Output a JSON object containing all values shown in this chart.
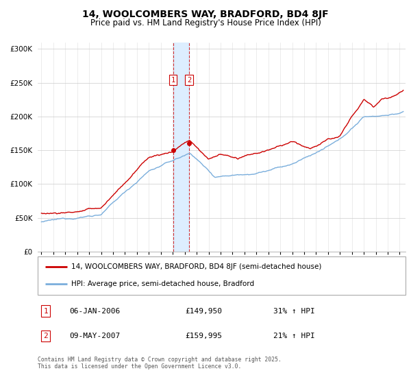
{
  "title": "14, WOOLCOMBERS WAY, BRADFORD, BD4 8JF",
  "subtitle": "Price paid vs. HM Land Registry's House Price Index (HPI)",
  "legend_line1": "14, WOOLCOMBERS WAY, BRADFORD, BD4 8JF (semi-detached house)",
  "legend_line2": "HPI: Average price, semi-detached house, Bradford",
  "transaction1_date": "06-JAN-2006",
  "transaction1_price": "£149,950",
  "transaction1_hpi": "31% ↑ HPI",
  "transaction2_date": "09-MAY-2007",
  "transaction2_price": "£159,995",
  "transaction2_hpi": "21% ↑ HPI",
  "footnote": "Contains HM Land Registry data © Crown copyright and database right 2025.\nThis data is licensed under the Open Government Licence v3.0.",
  "red_color": "#cc0000",
  "blue_color": "#7aaedc",
  "shade_color": "#ddeeff",
  "transaction1_x": 2006.03,
  "transaction2_x": 2007.37,
  "transaction1_y": 149950,
  "transaction2_y": 159995,
  "ylim": [
    0,
    310000
  ],
  "xlim_start": 1994.7,
  "xlim_end": 2025.5,
  "yticks": [
    0,
    50000,
    100000,
    150000,
    200000,
    250000,
    300000
  ],
  "xticks": [
    1995,
    1996,
    1997,
    1998,
    1999,
    2000,
    2001,
    2002,
    2003,
    2004,
    2005,
    2006,
    2007,
    2008,
    2009,
    2010,
    2011,
    2012,
    2013,
    2014,
    2015,
    2016,
    2017,
    2018,
    2019,
    2020,
    2021,
    2022,
    2023,
    2024,
    2025
  ]
}
